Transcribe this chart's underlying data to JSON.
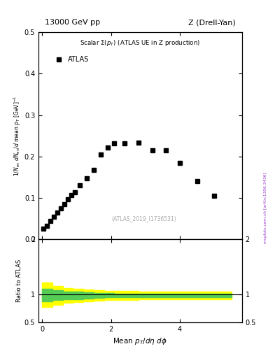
{
  "title_left": "13000 GeV pp",
  "title_right": "Z (Drell-Yan)",
  "inspire_label": "(ATLAS_2019_I1736531)",
  "arxiv_label": "mcplots.cern.ch [arXiv:1306.3436]",
  "main_ylim": [
    0.0,
    0.5
  ],
  "ratio_ylim": [
    0.5,
    2.0
  ],
  "xlim": [
    -0.1,
    5.8
  ],
  "data_x": [
    0.05,
    0.15,
    0.25,
    0.35,
    0.45,
    0.55,
    0.65,
    0.75,
    0.85,
    0.95,
    1.1,
    1.3,
    1.5,
    1.7,
    1.9,
    2.1,
    2.4,
    2.8,
    3.2,
    3.6,
    4.0,
    4.5,
    5.0
  ],
  "data_y": [
    0.025,
    0.033,
    0.045,
    0.055,
    0.065,
    0.075,
    0.085,
    0.096,
    0.107,
    0.113,
    0.13,
    0.148,
    0.168,
    0.205,
    0.222,
    0.232,
    0.232,
    0.234,
    0.215,
    0.215,
    0.185,
    0.14,
    0.105
  ],
  "ratio_x": [
    0.0,
    0.3,
    0.6,
    0.9,
    1.2,
    1.5,
    1.8,
    2.1,
    2.8,
    3.5,
    4.2,
    5.0,
    5.5
  ],
  "ratio_band_yellow_upper": [
    1.22,
    1.15,
    1.12,
    1.1,
    1.09,
    1.08,
    1.07,
    1.07,
    1.06,
    1.06,
    1.06,
    1.06,
    1.06
  ],
  "ratio_band_yellow_lower": [
    0.78,
    0.82,
    0.85,
    0.87,
    0.88,
    0.89,
    0.9,
    0.9,
    0.91,
    0.91,
    0.91,
    0.91,
    0.91
  ],
  "ratio_band_green_upper": [
    1.1,
    1.08,
    1.06,
    1.05,
    1.04,
    1.03,
    1.03,
    1.02,
    1.02,
    1.02,
    1.02,
    1.02,
    1.02
  ],
  "ratio_band_green_lower": [
    0.88,
    0.9,
    0.91,
    0.92,
    0.93,
    0.94,
    0.95,
    0.95,
    0.95,
    0.95,
    0.95,
    0.95,
    0.95
  ],
  "marker_color": "black",
  "marker_style": "s",
  "marker_size": 4,
  "yellow_color": "#ffff00",
  "green_color": "#55cc55",
  "line_color": "black",
  "background_color": "white"
}
